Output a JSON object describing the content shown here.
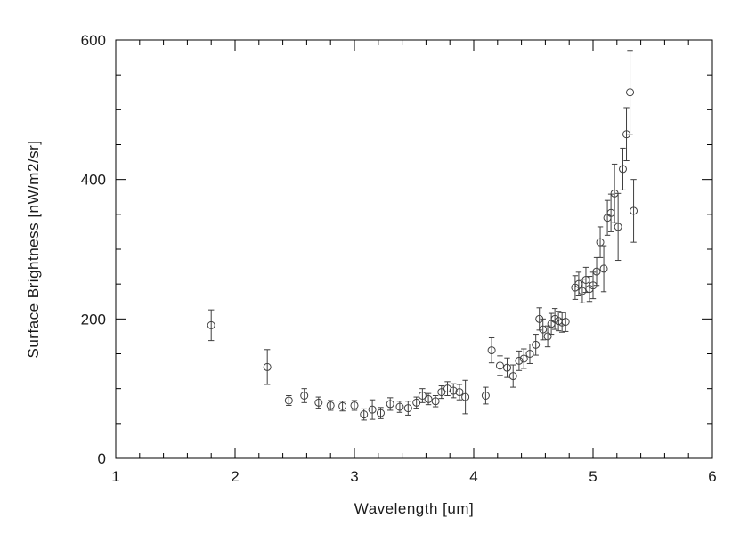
{
  "chart_data": {
    "type": "scatter",
    "title": "",
    "xlabel": "Wavelength [um]",
    "ylabel": "Surface Brightness [nW/m2/sr]",
    "xlim": [
      1,
      6
    ],
    "ylim": [
      0,
      600
    ],
    "x_ticks": [
      1,
      2,
      3,
      4,
      5,
      6
    ],
    "y_ticks": [
      0,
      200,
      400,
      600
    ],
    "x_minor": 0.2,
    "y_minor": 50,
    "grid": false,
    "legend": "none",
    "marker": "open-circle",
    "error_bars": true,
    "marker_color": "#3f3f3f",
    "axis_color": "#000000",
    "points": [
      {
        "x": 1.8,
        "y": 191,
        "e": 22
      },
      {
        "x": 2.27,
        "y": 131,
        "e": 25
      },
      {
        "x": 2.45,
        "y": 83,
        "e": 7
      },
      {
        "x": 2.58,
        "y": 90,
        "e": 10
      },
      {
        "x": 2.7,
        "y": 80,
        "e": 8
      },
      {
        "x": 2.8,
        "y": 76,
        "e": 7
      },
      {
        "x": 2.9,
        "y": 75,
        "e": 7
      },
      {
        "x": 3.0,
        "y": 76,
        "e": 7
      },
      {
        "x": 3.08,
        "y": 63,
        "e": 8
      },
      {
        "x": 3.15,
        "y": 70,
        "e": 14
      },
      {
        "x": 3.22,
        "y": 65,
        "e": 8
      },
      {
        "x": 3.3,
        "y": 78,
        "e": 9
      },
      {
        "x": 3.38,
        "y": 74,
        "e": 8
      },
      {
        "x": 3.45,
        "y": 72,
        "e": 10
      },
      {
        "x": 3.52,
        "y": 80,
        "e": 8
      },
      {
        "x": 3.57,
        "y": 90,
        "e": 10
      },
      {
        "x": 3.62,
        "y": 85,
        "e": 8
      },
      {
        "x": 3.68,
        "y": 82,
        "e": 8
      },
      {
        "x": 3.73,
        "y": 95,
        "e": 9
      },
      {
        "x": 3.78,
        "y": 100,
        "e": 10
      },
      {
        "x": 3.83,
        "y": 97,
        "e": 10
      },
      {
        "x": 3.88,
        "y": 95,
        "e": 11
      },
      {
        "x": 3.93,
        "y": 88,
        "e": 24
      },
      {
        "x": 4.1,
        "y": 90,
        "e": 12
      },
      {
        "x": 4.15,
        "y": 155,
        "e": 18
      },
      {
        "x": 4.22,
        "y": 133,
        "e": 14
      },
      {
        "x": 4.28,
        "y": 130,
        "e": 14
      },
      {
        "x": 4.33,
        "y": 118,
        "e": 16
      },
      {
        "x": 4.38,
        "y": 140,
        "e": 14
      },
      {
        "x": 4.42,
        "y": 143,
        "e": 14
      },
      {
        "x": 4.47,
        "y": 150,
        "e": 14
      },
      {
        "x": 4.52,
        "y": 163,
        "e": 15
      },
      {
        "x": 4.55,
        "y": 200,
        "e": 16
      },
      {
        "x": 4.58,
        "y": 185,
        "e": 15
      },
      {
        "x": 4.62,
        "y": 175,
        "e": 15
      },
      {
        "x": 4.65,
        "y": 193,
        "e": 15
      },
      {
        "x": 4.68,
        "y": 200,
        "e": 15
      },
      {
        "x": 4.71,
        "y": 197,
        "e": 14
      },
      {
        "x": 4.74,
        "y": 195,
        "e": 14
      },
      {
        "x": 4.77,
        "y": 196,
        "e": 14
      },
      {
        "x": 4.85,
        "y": 245,
        "e": 17
      },
      {
        "x": 4.88,
        "y": 250,
        "e": 17
      },
      {
        "x": 4.91,
        "y": 240,
        "e": 17
      },
      {
        "x": 4.94,
        "y": 256,
        "e": 18
      },
      {
        "x": 4.97,
        "y": 243,
        "e": 18
      },
      {
        "x": 5.0,
        "y": 248,
        "e": 19
      },
      {
        "x": 5.03,
        "y": 268,
        "e": 20
      },
      {
        "x": 5.06,
        "y": 310,
        "e": 22
      },
      {
        "x": 5.09,
        "y": 272,
        "e": 33
      },
      {
        "x": 5.12,
        "y": 345,
        "e": 25
      },
      {
        "x": 5.15,
        "y": 352,
        "e": 27
      },
      {
        "x": 5.18,
        "y": 380,
        "e": 42
      },
      {
        "x": 5.21,
        "y": 332,
        "e": 48
      },
      {
        "x": 5.25,
        "y": 415,
        "e": 30
      },
      {
        "x": 5.28,
        "y": 465,
        "e": 38
      },
      {
        "x": 5.31,
        "y": 525,
        "e": 60
      },
      {
        "x": 5.34,
        "y": 355,
        "e": 45
      }
    ]
  }
}
